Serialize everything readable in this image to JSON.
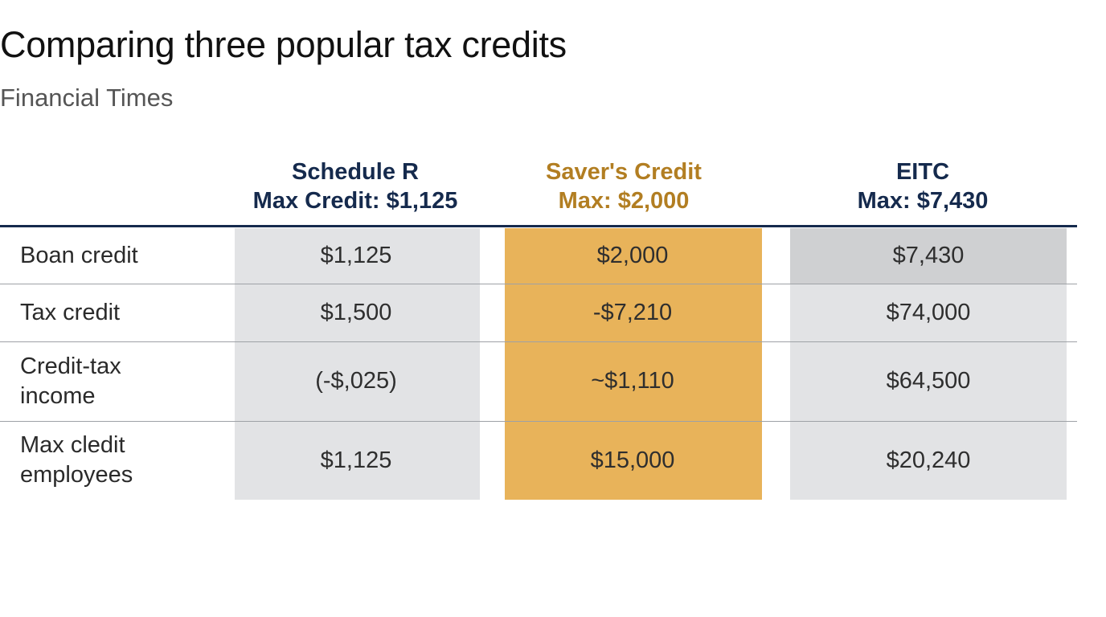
{
  "chart_data": {
    "type": "table",
    "title": "Comparing three popular tax credits",
    "subtitle": "Financial Times",
    "columns": [
      {
        "name": "Schedule R",
        "max_label": "Max Credit: $1,125",
        "color": "#152a4d",
        "fill": "#e2e3e5"
      },
      {
        "name": "Saver's Credit",
        "max_label": "Max: $2,000",
        "color": "#b27e22",
        "fill": "#e8b35a"
      },
      {
        "name": "EITC",
        "max_label": "Max: $7,430",
        "color": "#152a4d",
        "fill": "#e2e3e5"
      }
    ],
    "rows": [
      {
        "label": "Boan credit",
        "values": [
          "$1,125",
          "$2,000",
          "$7,430"
        ]
      },
      {
        "label": "Tax credit",
        "values": [
          "$1,500",
          "-$7,210",
          "$74,000"
        ]
      },
      {
        "label": "Credit-tax\nincome",
        "values": [
          "(-$,025)",
          "~$1,110",
          "$64,500"
        ]
      },
      {
        "label": "Max cledit\nemployees",
        "values": [
          "$1,125",
          "$15,000",
          "$20,240"
        ]
      }
    ],
    "highlighted_cell": {
      "row": 0,
      "column": 2,
      "fill": "#cfd0d2"
    }
  }
}
